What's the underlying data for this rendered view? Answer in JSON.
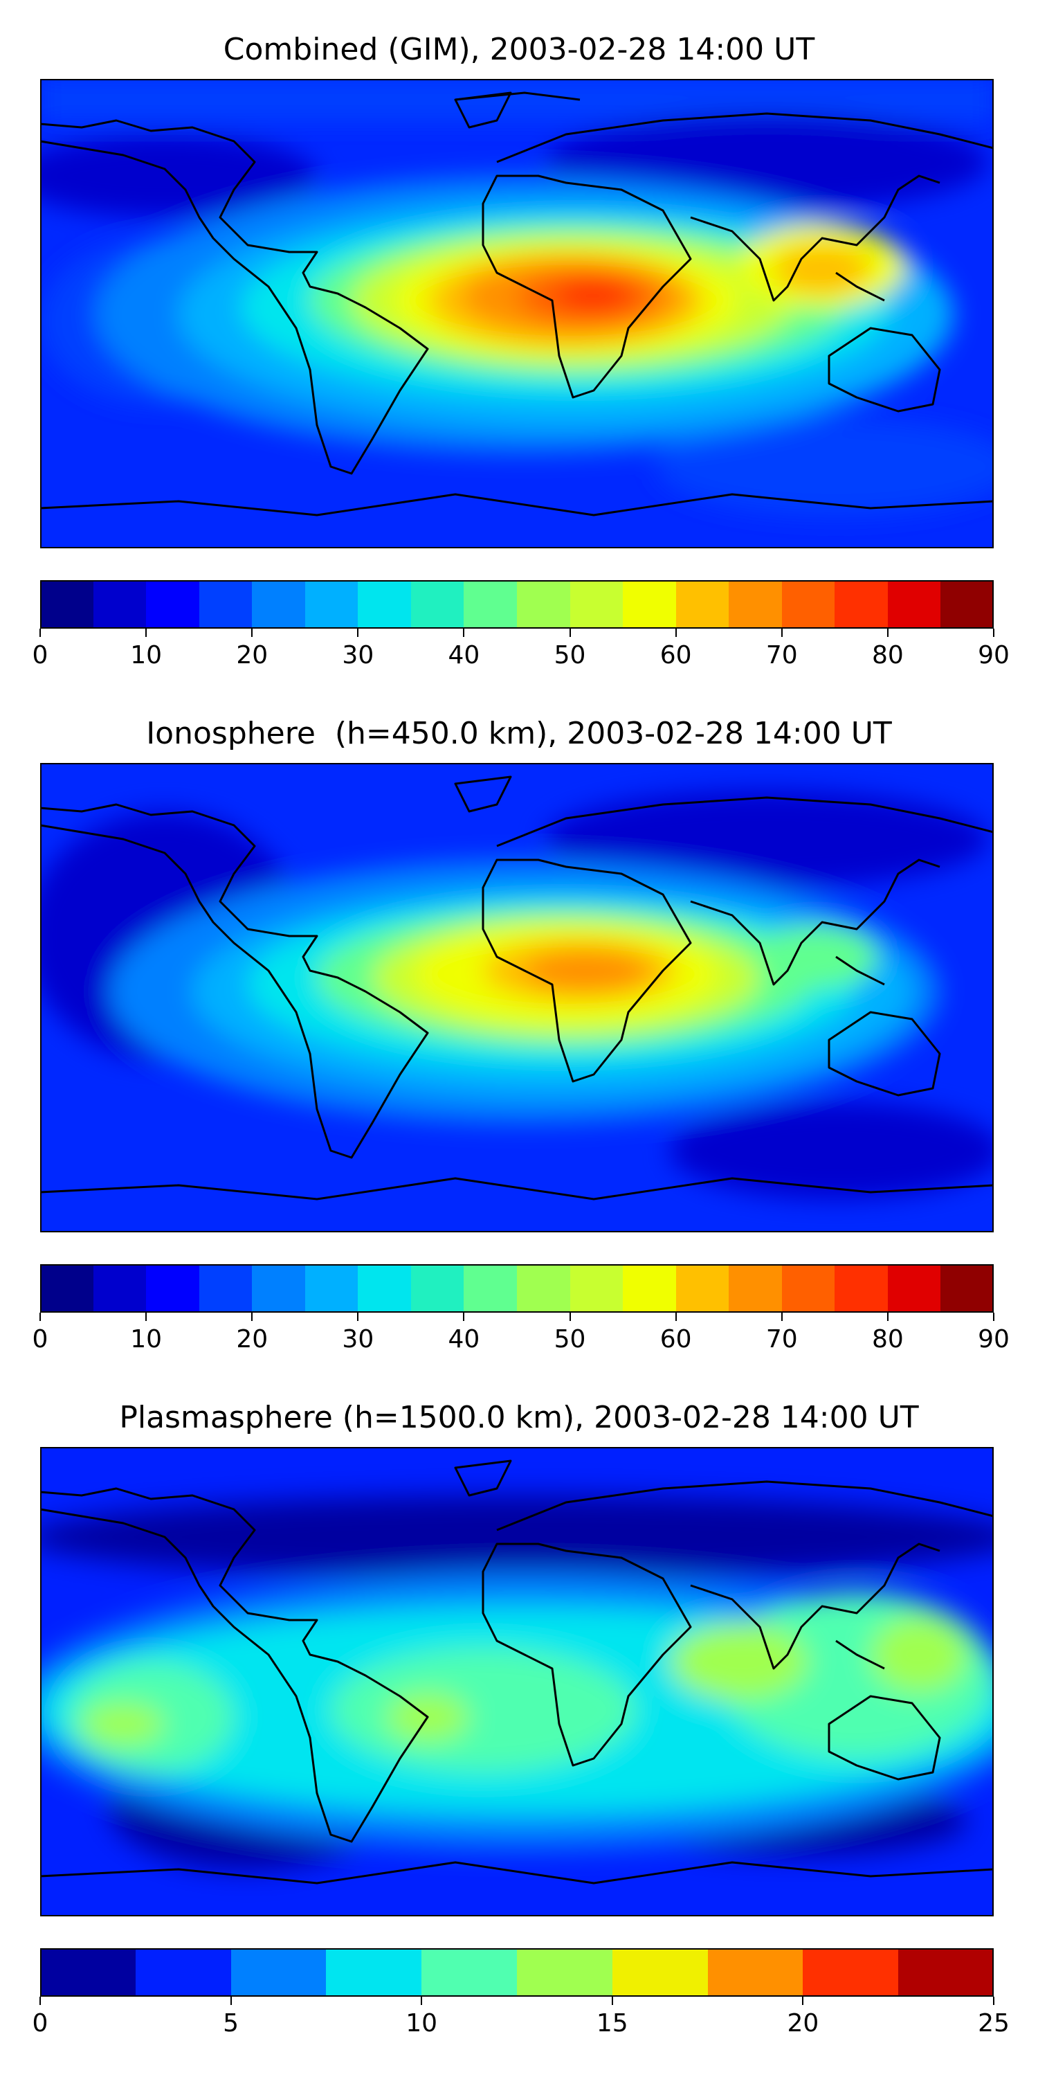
{
  "panels": [
    {
      "id": "combined",
      "title": "Combined (GIM), 2003-02-28 14:00 UT",
      "colorbar": {
        "min": 0,
        "max": 90,
        "ticks": [
          "0",
          "10",
          "20",
          "30",
          "40",
          "50",
          "60",
          "70",
          "80",
          "90"
        ],
        "colors": [
          "#00008b",
          "#0000cd",
          "#0000ff",
          "#0040ff",
          "#0080ff",
          "#00b0ff",
          "#00e5ee",
          "#20f0c0",
          "#60ff90",
          "#a0ff50",
          "#c8ff30",
          "#f0ff00",
          "#ffc000",
          "#ff9000",
          "#ff6000",
          "#ff3000",
          "#e00000",
          "#900000"
        ]
      }
    },
    {
      "id": "ionosphere",
      "title": "Ionosphere  (h=450.0 km), 2003-02-28 14:00 UT",
      "colorbar": {
        "min": 0,
        "max": 90,
        "ticks": [
          "0",
          "10",
          "20",
          "30",
          "40",
          "50",
          "60",
          "70",
          "80",
          "90"
        ],
        "colors": [
          "#00008b",
          "#0000cd",
          "#0000ff",
          "#0040ff",
          "#0080ff",
          "#00b0ff",
          "#00e5ee",
          "#20f0c0",
          "#60ff90",
          "#a0ff50",
          "#c8ff30",
          "#f0ff00",
          "#ffc000",
          "#ff9000",
          "#ff6000",
          "#ff3000",
          "#e00000",
          "#900000"
        ]
      }
    },
    {
      "id": "plasmasphere",
      "title": "Plasmasphere (h=1500.0 km), 2003-02-28 14:00 UT",
      "colorbar": {
        "min": 0,
        "max": 25,
        "ticks": [
          "0",
          "5",
          "10",
          "15",
          "20",
          "25"
        ],
        "colors": [
          "#0000a0",
          "#0020ff",
          "#0080ff",
          "#00e5f0",
          "#50ffb0",
          "#a0ff50",
          "#f0f000",
          "#ff9000",
          "#ff3000",
          "#b00000"
        ]
      }
    }
  ]
}
